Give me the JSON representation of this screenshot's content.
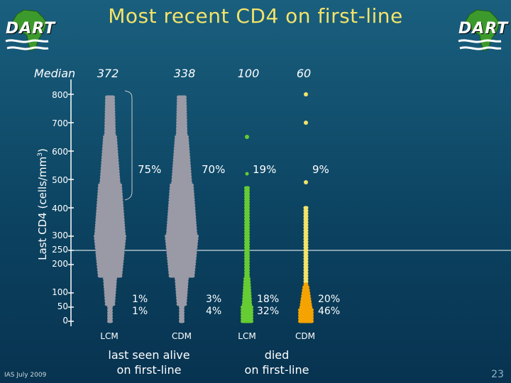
{
  "title": "Most recent CD4 on first-line",
  "logo_text": "DART",
  "median_label": "Median",
  "medians": [
    "372",
    "338",
    "100",
    "60"
  ],
  "footer": "IAS July 2009",
  "page_number": "23",
  "colors": {
    "title": "#f2e36a",
    "lcm_alive": "#9a9aa6",
    "cdm_alive": "#9a9aa6",
    "lcm_died": "#66cc33",
    "cdm_died": "#f5a300",
    "death_dot": "#f2e36a"
  },
  "chart_data": {
    "type": "scatter",
    "title": "Most recent CD4 on first-line",
    "ylabel": "Last CD4 (cells/mm3)",
    "ylabel_text": "Last CD4 (cells/mm",
    "ylabel_sup": "3",
    "ylabel_close": ")",
    "yticks": [
      "800",
      "700",
      "600",
      "500",
      "400",
      "300",
      "250",
      "200",
      "100",
      "50",
      "0"
    ],
    "reference_line_cd4": 250,
    "categories": [
      "LCM",
      "CDM",
      "LCM",
      "CDM"
    ],
    "group_labels": [
      {
        "line1": "last seen alive",
        "line2": "on first-line"
      },
      {
        "line1": "died",
        "line2": "on first-line"
      }
    ],
    "series": [
      {
        "group": "last seen alive",
        "arm": "LCM",
        "median": 372,
        "pct_above_250": "75%",
        "pct_lt100": "1%",
        "pct_lt50": "1%"
      },
      {
        "group": "last seen alive",
        "arm": "CDM",
        "median": 338,
        "pct_above_250": "70%",
        "pct_lt100": "3%",
        "pct_lt50": "4%"
      },
      {
        "group": "died",
        "arm": "LCM",
        "median": 100,
        "pct_above_250": "19%",
        "pct_lt100": "18%",
        "pct_lt50": "32%"
      },
      {
        "group": "died",
        "arm": "CDM",
        "median": 60,
        "pct_above_250": "9%",
        "pct_lt100": "20%",
        "pct_lt50": "46%"
      }
    ]
  }
}
